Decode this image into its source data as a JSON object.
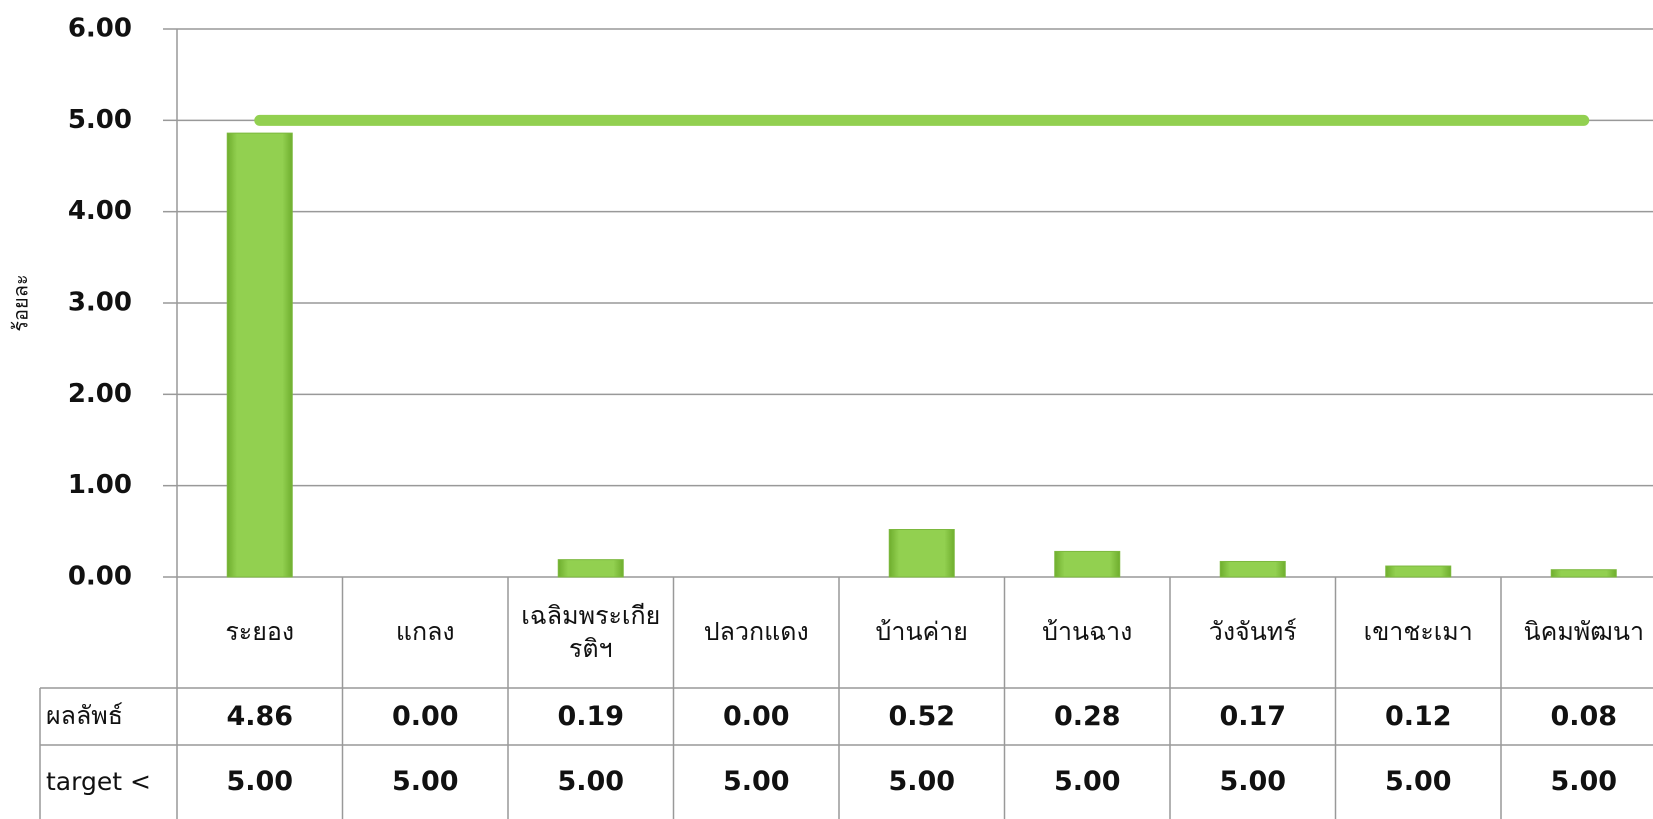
{
  "chart_data": {
    "type": "bar",
    "y_label": "ร้อยละ",
    "categories": [
      "ระยอง",
      "แกลง",
      "เฉลิมพระเกียรติฯ",
      "ปลวกแดง",
      "บ้านค่าย",
      "บ้านฉาง",
      "วังจันทร์",
      "เขาชะเมา",
      "นิคมพัฒนา"
    ],
    "series": [
      {
        "name": "ผลลัพธ์",
        "type": "bar",
        "color": "#92d050",
        "values": [
          4.86,
          0,
          0.19,
          0,
          0.52,
          0.28,
          0.17,
          0.12,
          0.08
        ],
        "value_labels": [
          "4.86",
          "0.00",
          "0.19",
          "0.00",
          "0.52",
          "0.28",
          "0.17",
          "0.12",
          "0.08"
        ]
      },
      {
        "name": "target <",
        "type": "line",
        "color": "#92d050",
        "values": [
          5,
          5,
          5,
          5,
          5,
          5,
          5,
          5,
          5
        ],
        "value_labels": [
          "5.00",
          "5.00",
          "5.00",
          "5.00",
          "5.00",
          "5.00",
          "5.00",
          "5.00",
          "5.00"
        ]
      }
    ],
    "ylim": [
      0,
      6
    ],
    "yticks": [
      {
        "value": 0,
        "label": "0.00"
      },
      {
        "value": 1,
        "label": "1.00"
      },
      {
        "value": 2,
        "label": "2.00"
      },
      {
        "value": 3,
        "label": "3.00"
      },
      {
        "value": 4,
        "label": "4.00"
      },
      {
        "value": 5,
        "label": "5.00"
      },
      {
        "value": 6,
        "label": "6.00"
      }
    ],
    "grid": true,
    "data_table": true
  }
}
